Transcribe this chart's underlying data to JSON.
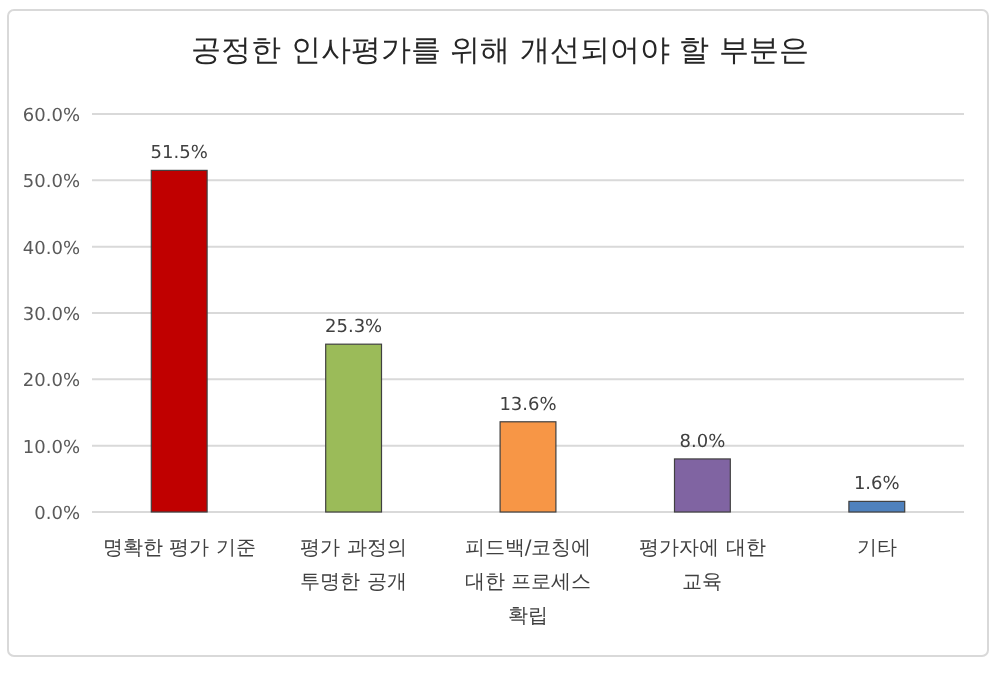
{
  "chart_data": {
    "type": "bar",
    "title": "공정한 인사평가를 위해 개선되어야 할 부분은",
    "categories": [
      "명확한 평가 기준",
      "평가 과정의 투명한 공개",
      "피드백/코칭에 대한 프로세스 확립",
      "평가자에 대한 교육",
      "기타"
    ],
    "values": [
      51.5,
      25.3,
      13.6,
      8.0,
      1.6
    ],
    "value_labels": [
      "51.5%",
      "25.3%",
      "13.6%",
      "8.0%",
      "1.6%"
    ],
    "colors": [
      "#c00000",
      "#9bbb59",
      "#f79646",
      "#8064a2",
      "#4f81bd"
    ],
    "ylim": [
      0,
      60
    ],
    "yticks": [
      {
        "value": 0,
        "label": "0.0%"
      },
      {
        "value": 10,
        "label": "10.0%"
      },
      {
        "value": 20,
        "label": "20.0%"
      },
      {
        "value": 30,
        "label": "30.0%"
      },
      {
        "value": 40,
        "label": "40.0%"
      },
      {
        "value": 50,
        "label": "50.0%"
      },
      {
        "value": 60,
        "label": "60.0%"
      }
    ],
    "grid": "y",
    "legend": false
  }
}
